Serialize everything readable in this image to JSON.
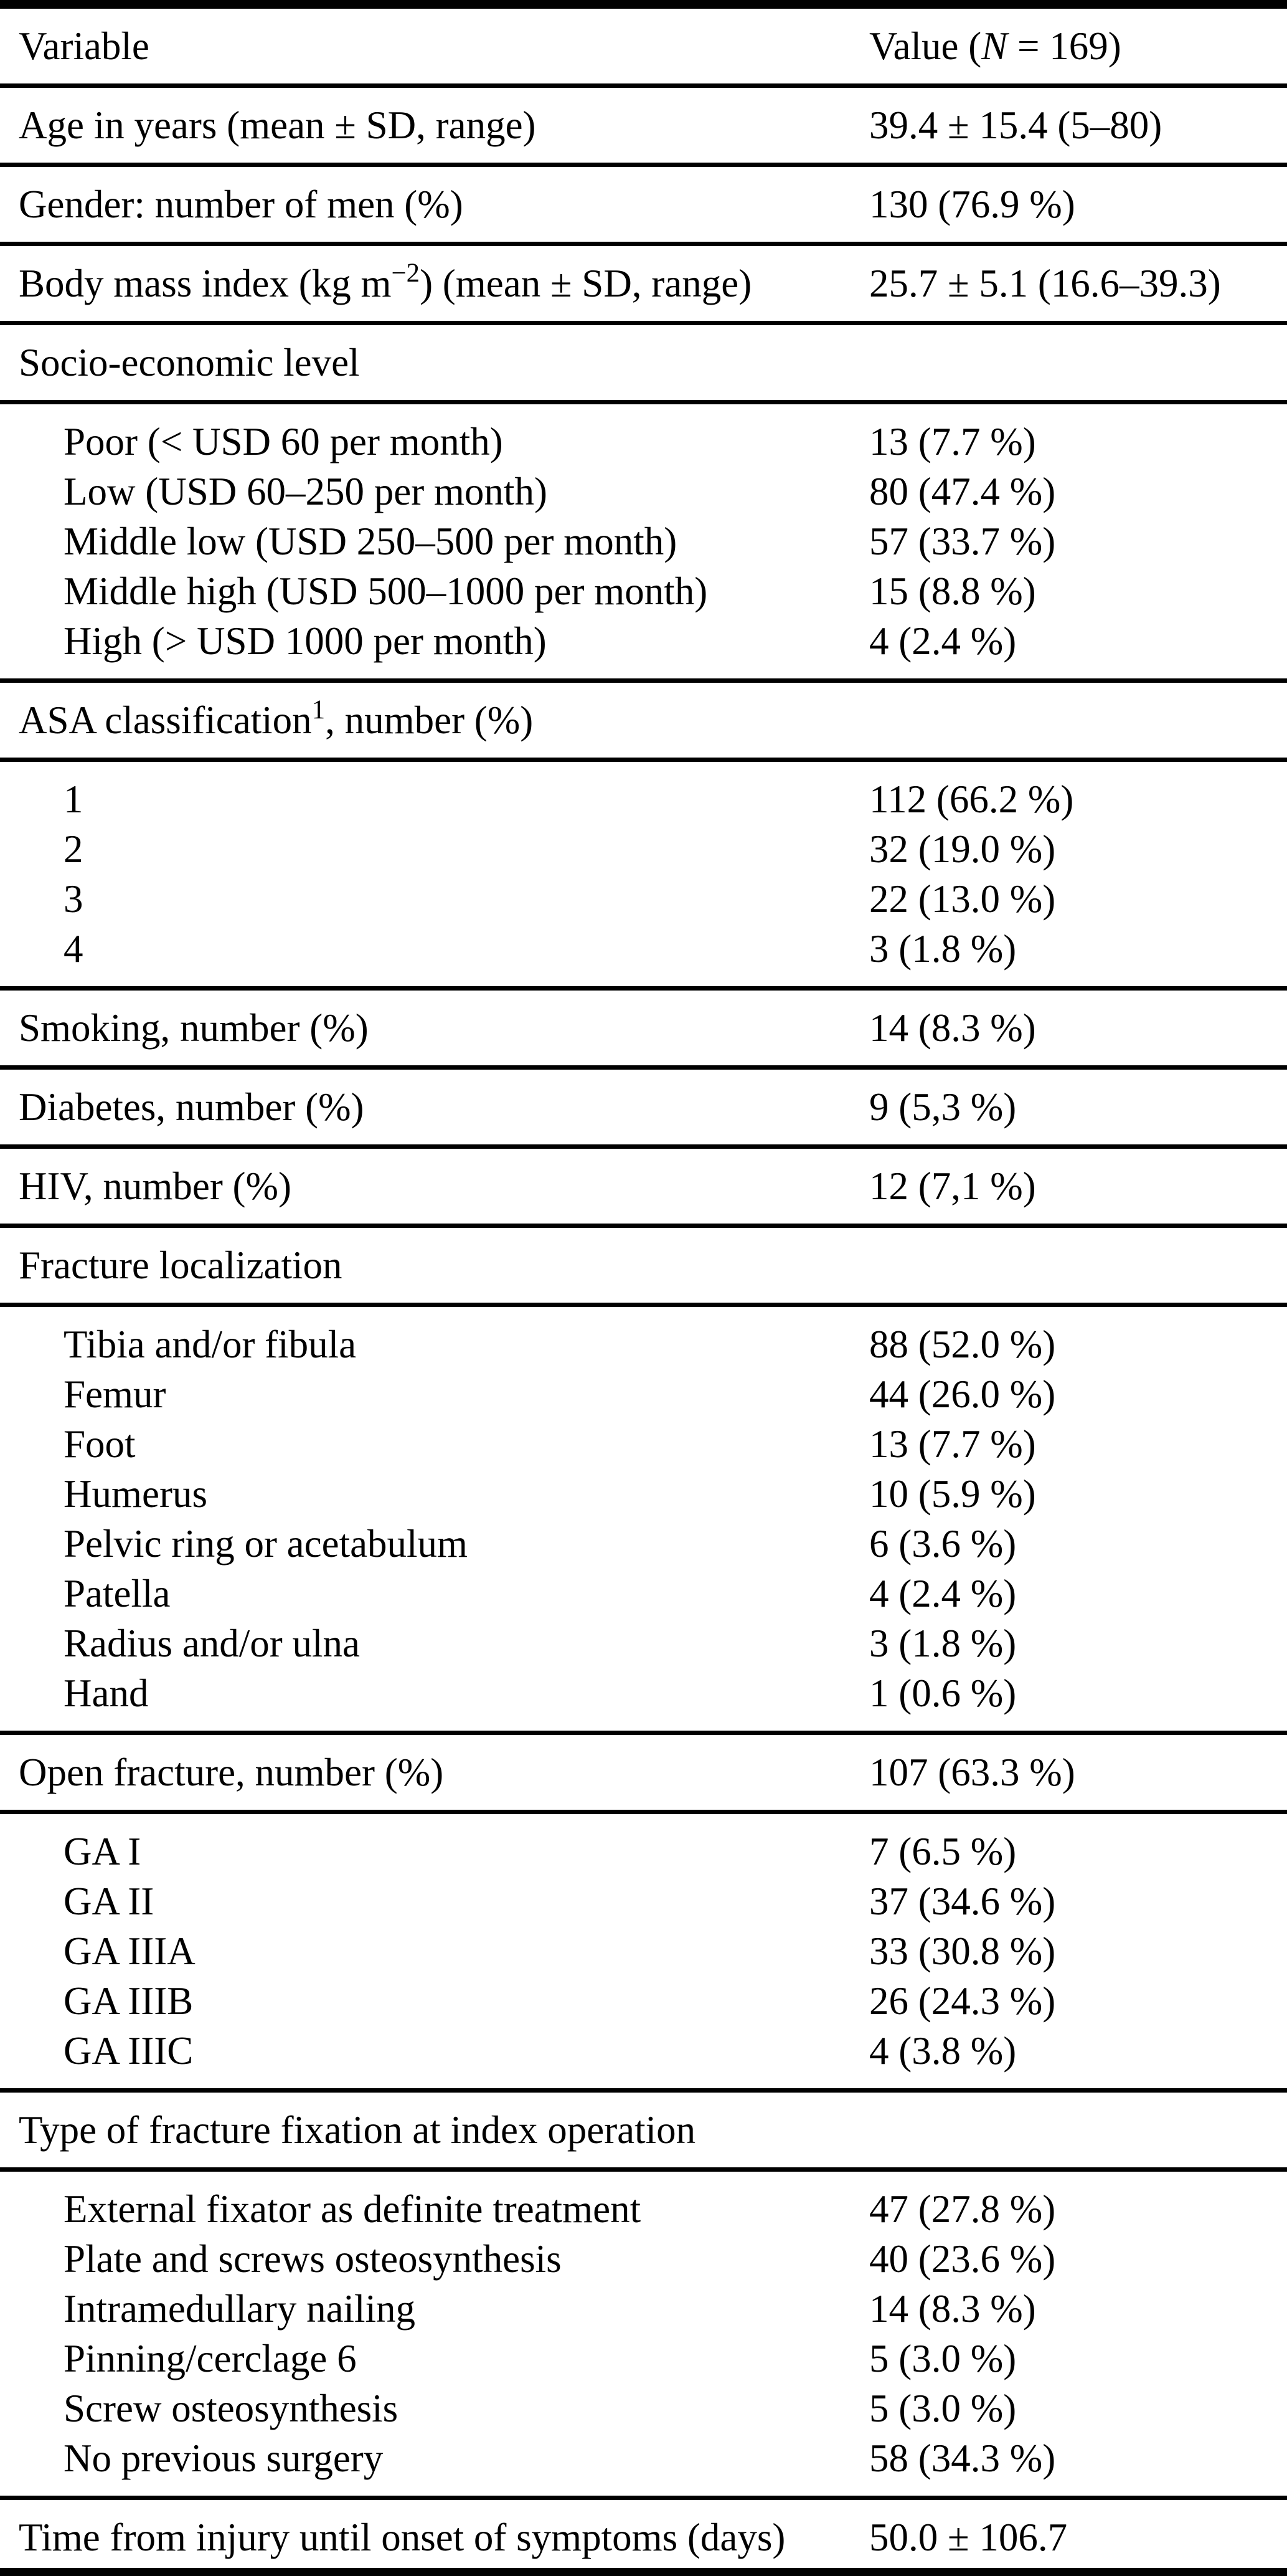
{
  "accent_colors": {
    "text": "#000000",
    "background": "#ffffff",
    "rule": "#000000"
  },
  "table": {
    "sections": [
      {
        "name": "column-header",
        "rows": [
          {
            "name": "column-header-row",
            "indent": false,
            "label": [
              {
                "t": "Variable"
              }
            ],
            "value": [
              {
                "t": "Value ("
              },
              {
                "it": "N"
              },
              {
                "t": " = 169)"
              }
            ]
          }
        ]
      },
      {
        "name": "age",
        "rows": [
          {
            "indent": false,
            "label": [
              {
                "t": "Age in years (mean ± SD, range)"
              }
            ],
            "value": [
              {
                "t": "39.4 ± 15.4 (5–80)"
              }
            ]
          }
        ]
      },
      {
        "name": "gender",
        "rows": [
          {
            "indent": false,
            "label": [
              {
                "t": "Gender: number of men (%)"
              }
            ],
            "value": [
              {
                "t": "130 (76.9 %)"
              }
            ]
          }
        ]
      },
      {
        "name": "body-mass-index",
        "rows": [
          {
            "indent": false,
            "label": [
              {
                "t": "Body mass index (kg m"
              },
              {
                "sup": "−2"
              },
              {
                "t": ") (mean ± SD, range)"
              }
            ],
            "value": [
              {
                "t": "25.7 ± 5.1 (16.6–39.3)"
              }
            ]
          }
        ]
      },
      {
        "name": "socio-economic-level-header",
        "rows": [
          {
            "indent": false,
            "label": [
              {
                "t": "Socio-economic level"
              }
            ],
            "value": []
          }
        ]
      },
      {
        "name": "socio-economic-level-group",
        "rows": [
          {
            "indent": true,
            "label": [
              {
                "t": "Poor (< USD 60 per month)"
              }
            ],
            "value": [
              {
                "t": "13 (7.7 %)"
              }
            ]
          },
          {
            "indent": true,
            "label": [
              {
                "t": "Low (USD 60–250 per month)"
              }
            ],
            "value": [
              {
                "t": "80 (47.4 %)"
              }
            ]
          },
          {
            "indent": true,
            "label": [
              {
                "t": "Middle low (USD 250–500 per month)"
              }
            ],
            "value": [
              {
                "t": "57 (33.7 %)"
              }
            ]
          },
          {
            "indent": true,
            "label": [
              {
                "t": "Middle high (USD 500–1000 per month)"
              }
            ],
            "value": [
              {
                "t": "15 (8.8 %)"
              }
            ]
          },
          {
            "indent": true,
            "label": [
              {
                "t": "High (> USD 1000 per month)"
              }
            ],
            "value": [
              {
                "t": "4 (2.4 %)"
              }
            ]
          }
        ]
      },
      {
        "name": "asa-classification-header",
        "rows": [
          {
            "indent": false,
            "label": [
              {
                "t": "ASA classification"
              },
              {
                "sup": "1"
              },
              {
                "t": ", number (%)"
              }
            ],
            "value": []
          }
        ]
      },
      {
        "name": "asa-classification-group",
        "rows": [
          {
            "indent": true,
            "label": [
              {
                "t": "1"
              }
            ],
            "value": [
              {
                "t": "112 (66.2 %)"
              }
            ]
          },
          {
            "indent": true,
            "label": [
              {
                "t": "2"
              }
            ],
            "value": [
              {
                "t": "32 (19.0 %)"
              }
            ]
          },
          {
            "indent": true,
            "label": [
              {
                "t": "3"
              }
            ],
            "value": [
              {
                "t": "22 (13.0 %)"
              }
            ]
          },
          {
            "indent": true,
            "label": [
              {
                "t": "4"
              }
            ],
            "value": [
              {
                "t": "3 (1.8 %)"
              }
            ]
          }
        ]
      },
      {
        "name": "smoking",
        "rows": [
          {
            "indent": false,
            "label": [
              {
                "t": "Smoking, number (%)"
              }
            ],
            "value": [
              {
                "t": "14 (8.3 %)"
              }
            ]
          }
        ]
      },
      {
        "name": "diabetes",
        "rows": [
          {
            "indent": false,
            "label": [
              {
                "t": "Diabetes, number (%)"
              }
            ],
            "value": [
              {
                "t": "9 (5,3 %)"
              }
            ]
          }
        ]
      },
      {
        "name": "hiv",
        "rows": [
          {
            "indent": false,
            "label": [
              {
                "t": "HIV, number (%)"
              }
            ],
            "value": [
              {
                "t": "12 (7,1 %)"
              }
            ]
          }
        ]
      },
      {
        "name": "fracture-localization-header",
        "rows": [
          {
            "indent": false,
            "label": [
              {
                "t": "Fracture localization"
              }
            ],
            "value": []
          }
        ]
      },
      {
        "name": "fracture-localization-group",
        "rows": [
          {
            "indent": true,
            "label": [
              {
                "t": "Tibia and/or fibula"
              }
            ],
            "value": [
              {
                "t": "88 (52.0 %)"
              }
            ]
          },
          {
            "indent": true,
            "label": [
              {
                "t": "Femur"
              }
            ],
            "value": [
              {
                "t": "44 (26.0 %)"
              }
            ]
          },
          {
            "indent": true,
            "label": [
              {
                "t": "Foot"
              }
            ],
            "value": [
              {
                "t": "13 (7.7 %)"
              }
            ]
          },
          {
            "indent": true,
            "label": [
              {
                "t": "Humerus"
              }
            ],
            "value": [
              {
                "t": "10 (5.9 %)"
              }
            ]
          },
          {
            "indent": true,
            "label": [
              {
                "t": "Pelvic ring or acetabulum"
              }
            ],
            "value": [
              {
                "t": "6 (3.6 %)"
              }
            ]
          },
          {
            "indent": true,
            "label": [
              {
                "t": "Patella"
              }
            ],
            "value": [
              {
                "t": "4 (2.4 %)"
              }
            ]
          },
          {
            "indent": true,
            "label": [
              {
                "t": "Radius and/or ulna"
              }
            ],
            "value": [
              {
                "t": "3 (1.8 %)"
              }
            ]
          },
          {
            "indent": true,
            "label": [
              {
                "t": "Hand"
              }
            ],
            "value": [
              {
                "t": "1 (0.6 %)"
              }
            ]
          }
        ]
      },
      {
        "name": "open-fracture",
        "rows": [
          {
            "indent": false,
            "label": [
              {
                "t": "Open fracture, number (%)"
              }
            ],
            "value": [
              {
                "t": "107 (63.3 %)"
              }
            ]
          }
        ]
      },
      {
        "name": "gustilo-anderson-group",
        "rows": [
          {
            "indent": true,
            "label": [
              {
                "t": "GA I"
              }
            ],
            "value": [
              {
                "t": "7 (6.5 %)"
              }
            ]
          },
          {
            "indent": true,
            "label": [
              {
                "t": "GA II"
              }
            ],
            "value": [
              {
                "t": "37 (34.6 %)"
              }
            ]
          },
          {
            "indent": true,
            "label": [
              {
                "t": "GA IIIA"
              }
            ],
            "value": [
              {
                "t": "33 (30.8 %)"
              }
            ]
          },
          {
            "indent": true,
            "label": [
              {
                "t": "GA IIIB"
              }
            ],
            "value": [
              {
                "t": "26 (24.3 %)"
              }
            ]
          },
          {
            "indent": true,
            "label": [
              {
                "t": "GA IIIC"
              }
            ],
            "value": [
              {
                "t": "4 (3.8 %)"
              }
            ]
          }
        ]
      },
      {
        "name": "fixation-type-header",
        "rows": [
          {
            "indent": false,
            "label": [
              {
                "t": "Type of fracture fixation at index operation"
              }
            ],
            "value": []
          }
        ]
      },
      {
        "name": "fixation-type-group",
        "rows": [
          {
            "indent": true,
            "label": [
              {
                "t": "External fixator as definite treatment"
              }
            ],
            "value": [
              {
                "t": "47 (27.8 %)"
              }
            ]
          },
          {
            "indent": true,
            "label": [
              {
                "t": "Plate and screws osteosynthesis"
              }
            ],
            "value": [
              {
                "t": "40 (23.6 %)"
              }
            ]
          },
          {
            "indent": true,
            "label": [
              {
                "t": "Intramedullary nailing"
              }
            ],
            "value": [
              {
                "t": "14 (8.3 %)"
              }
            ]
          },
          {
            "indent": true,
            "label": [
              {
                "t": "Pinning/cerclage 6"
              }
            ],
            "value": [
              {
                "t": "5 (3.0 %)"
              }
            ]
          },
          {
            "indent": true,
            "label": [
              {
                "t": "Screw osteosynthesis"
              }
            ],
            "value": [
              {
                "t": "5 (3.0 %)"
              }
            ]
          },
          {
            "indent": true,
            "label": [
              {
                "t": "No previous surgery"
              }
            ],
            "value": [
              {
                "t": "58 (34.3 %)"
              }
            ]
          }
        ]
      },
      {
        "name": "time-to-symptoms",
        "rows": [
          {
            "indent": false,
            "label": [
              {
                "t": "Time from injury until onset of symptoms (days)"
              }
            ],
            "value": [
              {
                "t": "50.0 ± 106.7"
              }
            ]
          }
        ]
      }
    ]
  }
}
